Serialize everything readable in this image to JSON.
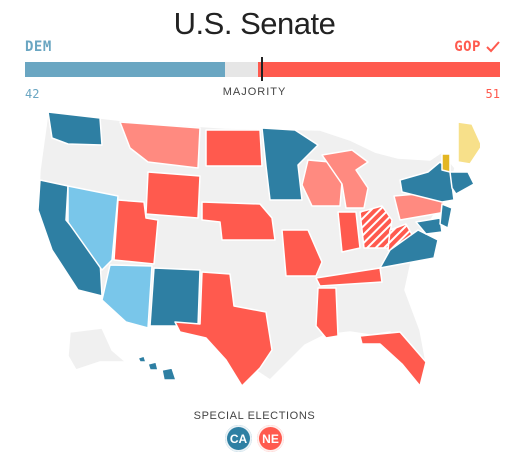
{
  "title": "U.S. Senate",
  "parties": {
    "dem": {
      "label": "DEM",
      "seats": "42",
      "color": "#6aa6c2"
    },
    "gop": {
      "label": "GOP",
      "seats": "51",
      "color": "#ff5a4e",
      "winner_icon": "check-icon"
    }
  },
  "seat_bar": {
    "total_seats": 100,
    "dem_seats": 42,
    "gop_seats": 51,
    "majority_label": "MAJORITY"
  },
  "legend_colors": {
    "dem_held": "#2e7fa3",
    "dem_pickup_or_other": "#79c6ea",
    "gop_held": "#ff5a4e",
    "gop_light": "#ff8a80",
    "independent": "#e3b622",
    "independent_light": "#f7e08a",
    "no_election": "#f0f0f0"
  },
  "special_elections": {
    "title": "SPECIAL ELECTIONS",
    "badges": [
      {
        "label": "CA",
        "color": "#2e7fa3"
      },
      {
        "label": "NE",
        "color": "#ff5a4e"
      }
    ]
  }
}
